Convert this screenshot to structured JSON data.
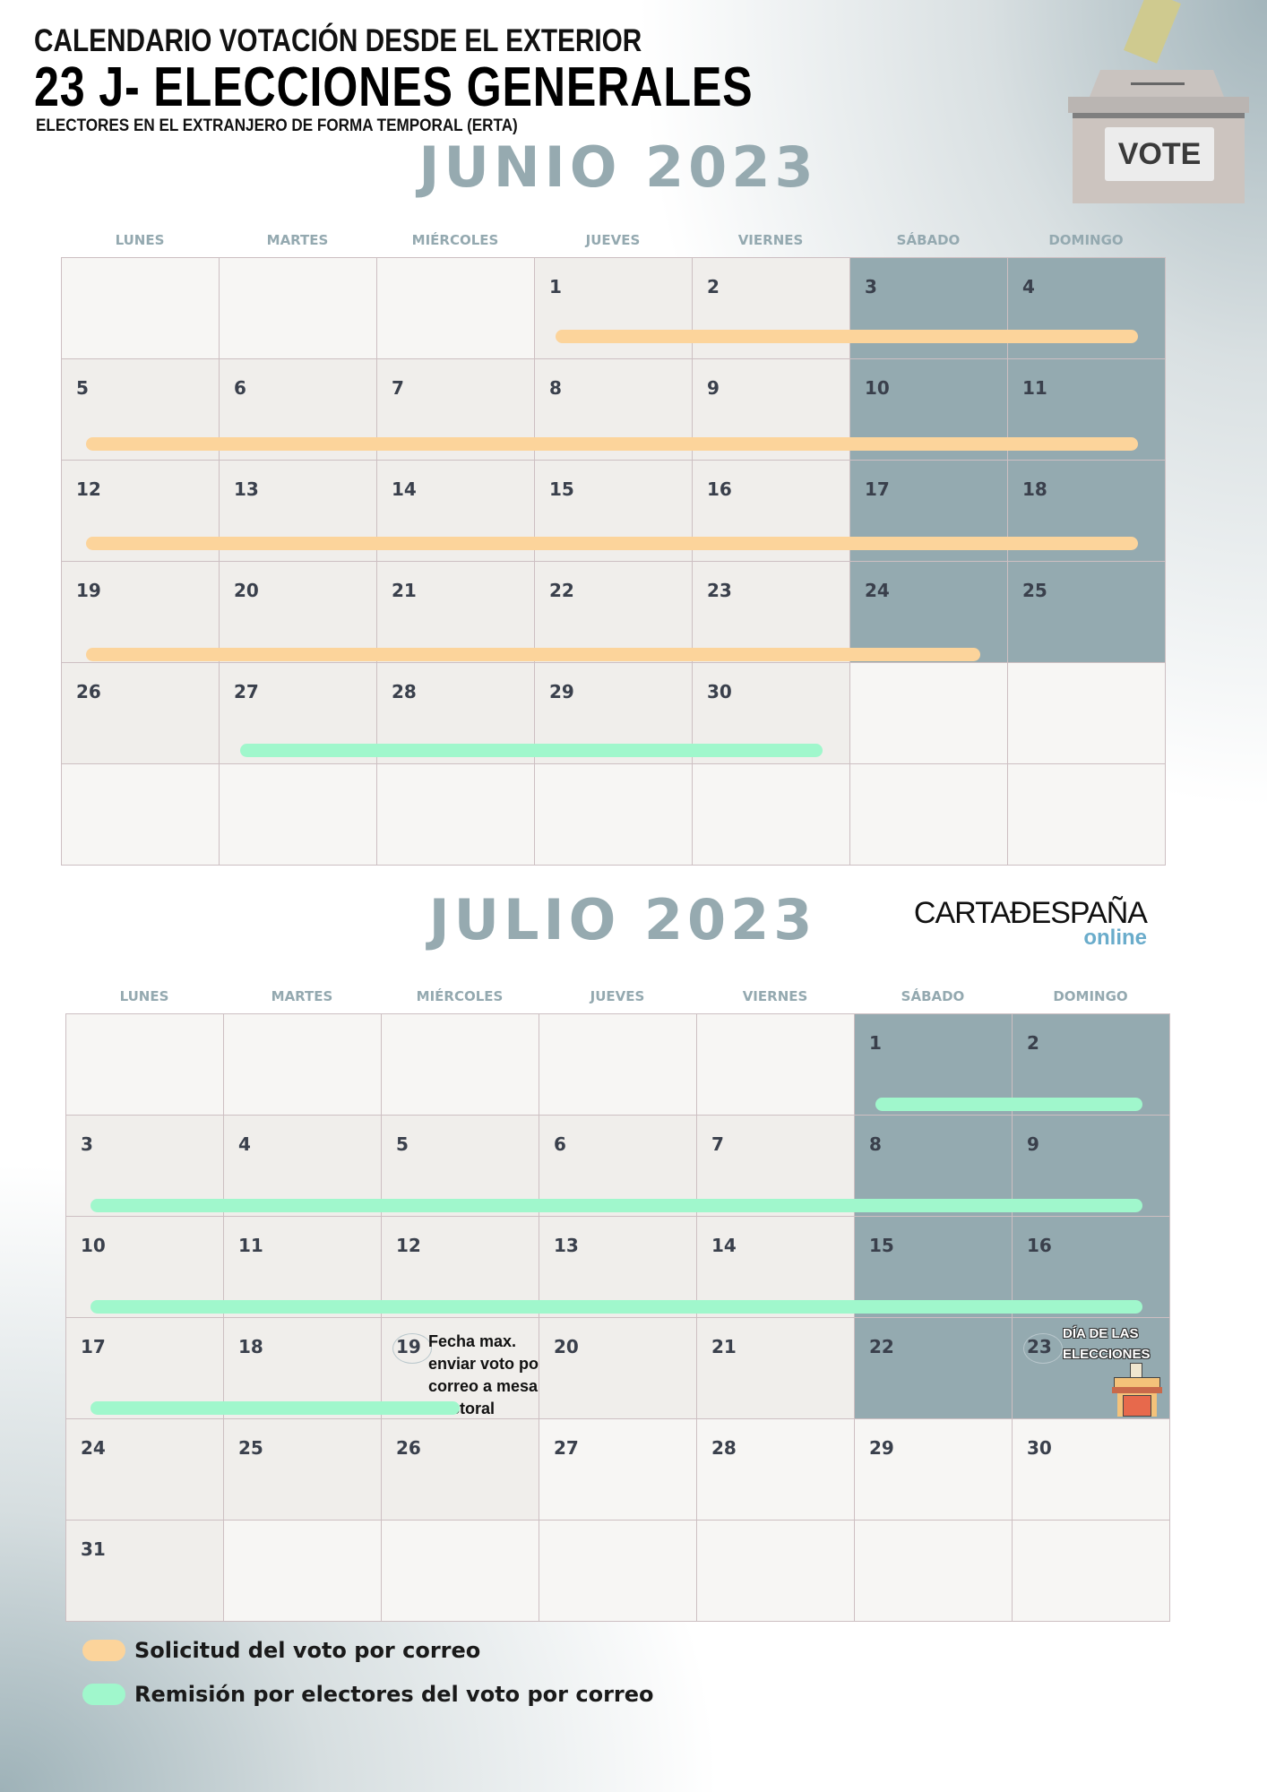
{
  "header": {
    "line1": "CALENDARIO VOTACIÓN DESDE EL EXTERIOR",
    "line2": "23 J- ELECCIONES GENERALES",
    "line3": "ELECTORES EN EL EXTRANJERO DE FORMA TEMPORAL (ERTA)",
    "vote_box_label": "VOTE"
  },
  "logo": {
    "main": "CARTAĐESPAÑA",
    "sub": "online",
    "accent": "#6aaccb"
  },
  "weekdays": [
    "LUNES",
    "MARTES",
    "MIÉRCOLES",
    "JUEVES",
    "VIERNES",
    "SÁBADO",
    "DOMINGO"
  ],
  "colors": {
    "solicitud": "#fcd49b",
    "remision": "#a0f7cc",
    "weekend": "#94aab0",
    "weekday": "#f0eeeb",
    "empty": "#f7f6f4"
  },
  "months": [
    {
      "title": "JUNIO 2023",
      "weeks": [
        [
          null,
          null,
          null,
          "1",
          "2",
          "3",
          "4"
        ],
        [
          "5",
          "6",
          "7",
          "8",
          "9",
          "10",
          "11"
        ],
        [
          "12",
          "13",
          "14",
          "15",
          "16",
          "17",
          "18"
        ],
        [
          "19",
          "20",
          "21",
          "22",
          "23",
          "24",
          "25"
        ],
        [
          "26",
          "27",
          "28",
          "29",
          "30",
          null,
          null
        ],
        [
          null,
          null,
          null,
          null,
          null,
          null,
          null
        ]
      ],
      "bars": [
        {
          "week": 0,
          "from": "1",
          "to": "4",
          "type": "solicitud"
        },
        {
          "week": 1,
          "from": "5",
          "to": "11",
          "type": "solicitud"
        },
        {
          "week": 2,
          "from": "12",
          "to": "18",
          "type": "solicitud"
        },
        {
          "week": 3,
          "from": "19",
          "to": "24",
          "type": "solicitud"
        },
        {
          "week": 4,
          "from": "27",
          "to": "30",
          "type": "remision"
        }
      ]
    },
    {
      "title": "JULIO 2023",
      "weeks": [
        [
          null,
          null,
          null,
          null,
          null,
          "1",
          "2"
        ],
        [
          "3",
          "4",
          "5",
          "6",
          "7",
          "8",
          "9"
        ],
        [
          "10",
          "11",
          "12",
          "13",
          "14",
          "15",
          "16"
        ],
        [
          "17",
          "18",
          "19",
          "20",
          "21",
          "22",
          "23"
        ],
        [
          "24",
          "25",
          "26",
          "27",
          "28",
          "29",
          "30"
        ],
        [
          "31",
          null,
          null,
          null,
          null,
          null,
          null
        ]
      ],
      "weekend_off_after": "23",
      "bars": [
        {
          "week": 0,
          "from": "1",
          "to": "2",
          "type": "remision"
        },
        {
          "week": 1,
          "from": "3",
          "to": "9",
          "type": "remision"
        },
        {
          "week": 2,
          "from": "10",
          "to": "16",
          "type": "remision"
        },
        {
          "week": 3,
          "from": "17",
          "to": "19",
          "type": "remision"
        }
      ],
      "notes": {
        "19": [
          "Fecha max.",
          "enviar voto por",
          "correo a mesa",
          "electoral"
        ],
        "23": [
          "DÍA DE LAS",
          "ELECCIONES"
        ]
      }
    }
  ],
  "legend": [
    {
      "type": "solicitud",
      "label": "Solicitud del voto por correo"
    },
    {
      "type": "remision",
      "label": "Remisión por electores del voto por correo"
    }
  ]
}
